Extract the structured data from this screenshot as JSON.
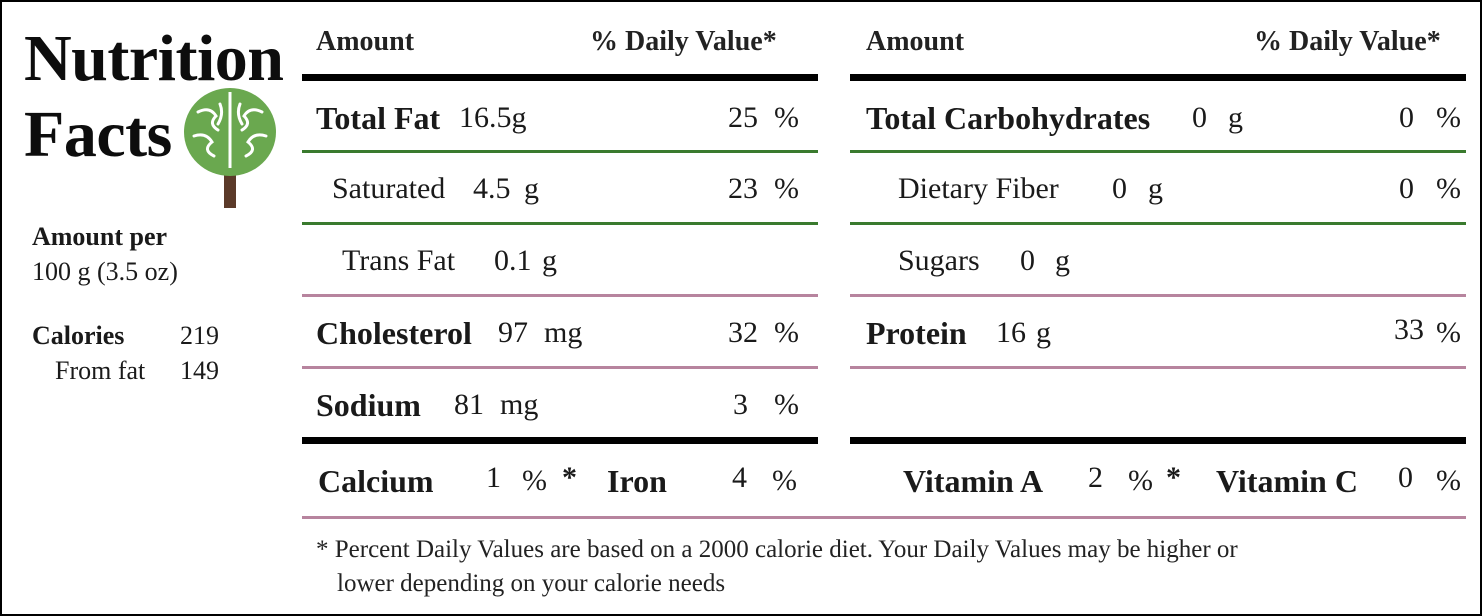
{
  "brand": {
    "title_line1": "Nutrition",
    "title_line2": "Facts",
    "logo_icon": "brain-tree-icon"
  },
  "serving": {
    "amount_per_label": "Amount per",
    "amount_value": "100 g (3.5 oz)",
    "calories_label": "Calories",
    "calories_value": "219",
    "from_fat_label": "From fat",
    "from_fat_value": "149"
  },
  "left_table": {
    "header_amount": "Amount",
    "header_dv": "% Daily Value*",
    "rows": [
      {
        "label": "Total Fat",
        "amount": "16.5g",
        "dv": "25",
        "pct": "%"
      },
      {
        "label": "Saturated",
        "amount": "4.5",
        "unit": "g",
        "dv": "23",
        "pct": "%"
      },
      {
        "label": "Trans Fat",
        "amount": "0.1",
        "unit": "g"
      },
      {
        "label": "Cholesterol",
        "amount": "97",
        "unit": "mg",
        "dv": "32",
        "pct": "%"
      },
      {
        "label": "Sodium",
        "amount": "81",
        "unit": "mg",
        "dv": "3",
        "pct": "%"
      }
    ]
  },
  "right_table": {
    "header_amount": "Amount",
    "header_dv": "% Daily Value*",
    "rows": [
      {
        "label": "Total Carbohydrates",
        "amount": "0",
        "unit": "g",
        "dv": "0",
        "pct": "%"
      },
      {
        "label": "Dietary Fiber",
        "amount": "0",
        "unit": "g",
        "dv": "0",
        "pct": "%"
      },
      {
        "label": "Sugars",
        "amount": "0",
        "unit": "g"
      },
      {
        "label": "Protein",
        "amount": "16",
        "unit": "g",
        "dv": "33",
        "pct": "%"
      }
    ]
  },
  "minerals": {
    "calcium_label": "Calcium",
    "calcium_value": "1",
    "calcium_pct": "%",
    "star": "*",
    "iron_label": "Iron",
    "iron_value": "4",
    "iron_pct": "%",
    "vitamin_a_label": "Vitamin A",
    "vitamin_a_value": "2",
    "vitamin_a_pct": "%",
    "star2": "*",
    "vitamin_c_label": "Vitamin C",
    "vitamin_c_value": "0",
    "vitamin_c_pct": "%"
  },
  "footnote": {
    "line1": "* Percent Daily Values are based on a 2000 calorie diet. Your Daily Values may be higher or",
    "line2": "lower depending on your calorie needs"
  },
  "colors": {
    "green_rule": "#3a7a2e",
    "pink_rule": "#b7849e",
    "logo_green": "#6aa84f",
    "logo_trunk": "#5b3a29"
  }
}
